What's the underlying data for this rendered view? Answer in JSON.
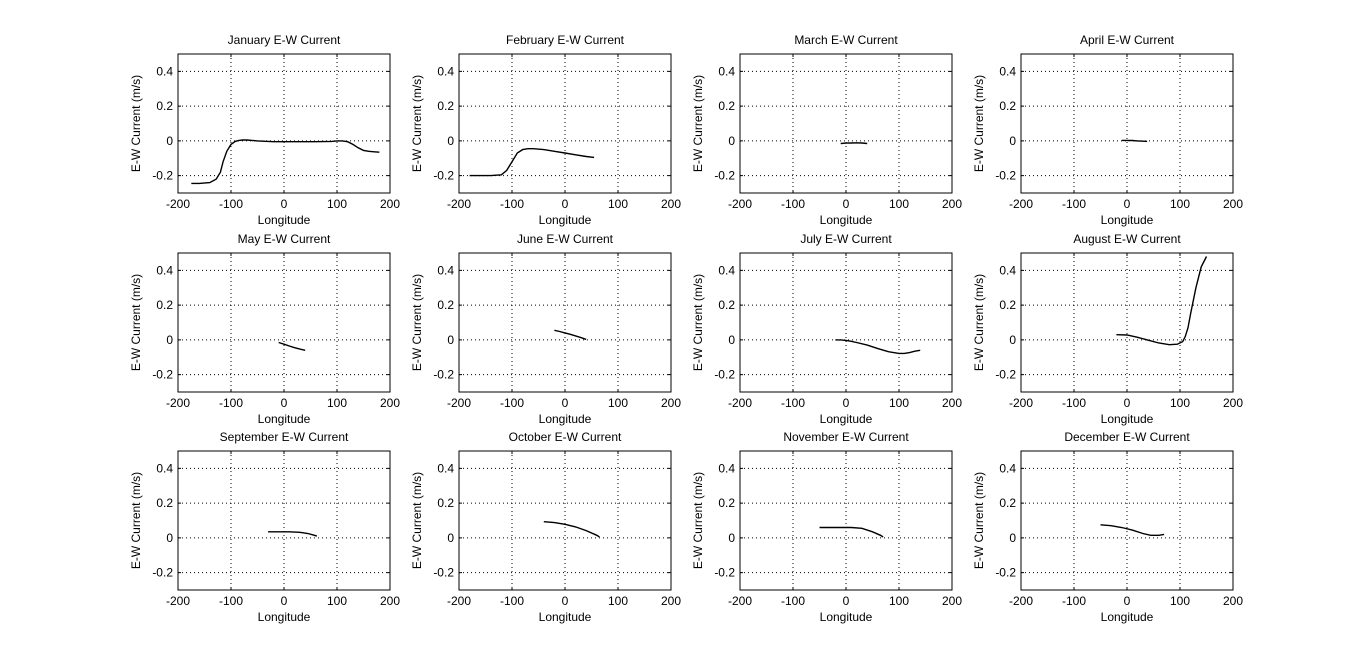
{
  "chart_data": [
    {
      "type": "line",
      "title": "January E-W Current",
      "xlabel": "Longitude",
      "ylabel": "E-W Current (m/s)",
      "xlim": [
        -200,
        200
      ],
      "ylim": [
        -0.3,
        0.5
      ],
      "xticks": [
        "-200",
        "-100",
        "0",
        "100",
        "200"
      ],
      "yticks": [
        "-0.2",
        "0",
        "0.2",
        "0.4"
      ],
      "grid": true,
      "series": [
        {
          "x": [
            -175,
            -160,
            -140,
            -128,
            -120,
            -115,
            -108,
            -100,
            -92,
            -85,
            -78,
            -70,
            -50,
            -20,
            0,
            30,
            60,
            90,
            100,
            110,
            120,
            130,
            140,
            150,
            160,
            170,
            180
          ],
          "y": [
            -0.245,
            -0.245,
            -0.24,
            -0.22,
            -0.18,
            -0.12,
            -0.06,
            -0.02,
            -0.003,
            0.003,
            0.005,
            0.005,
            0,
            -0.005,
            -0.005,
            -0.005,
            -0.005,
            -0.003,
            0,
            0,
            -0.005,
            -0.02,
            -0.04,
            -0.055,
            -0.06,
            -0.063,
            -0.065
          ]
        }
      ]
    },
    {
      "type": "line",
      "title": "February E-W Current",
      "xlabel": "Longitude",
      "ylabel": "E-W Current (m/s)",
      "xlim": [
        -200,
        200
      ],
      "ylim": [
        -0.3,
        0.5
      ],
      "xticks": [
        "-200",
        "-100",
        "0",
        "100",
        "200"
      ],
      "yticks": [
        "-0.2",
        "0",
        "0.2",
        "0.4"
      ],
      "grid": true,
      "series": [
        {
          "x": [
            -180,
            -160,
            -140,
            -120,
            -110,
            -100,
            -90,
            -80,
            -70,
            -60,
            -40,
            -20,
            0,
            20,
            40,
            55
          ],
          "y": [
            -0.2,
            -0.2,
            -0.2,
            -0.195,
            -0.17,
            -0.12,
            -0.07,
            -0.05,
            -0.045,
            -0.045,
            -0.05,
            -0.06,
            -0.07,
            -0.08,
            -0.09,
            -0.095
          ]
        }
      ]
    },
    {
      "type": "line",
      "title": "March E-W Current",
      "xlabel": "Longitude",
      "ylabel": "E-W Current (m/s)",
      "xlim": [
        -200,
        200
      ],
      "ylim": [
        -0.3,
        0.5
      ],
      "xticks": [
        "-200",
        "-100",
        "0",
        "100",
        "200"
      ],
      "yticks": [
        "-0.2",
        "0",
        "0.2",
        "0.4"
      ],
      "grid": true,
      "series": [
        {
          "x": [
            -10,
            0,
            10,
            20,
            30,
            40
          ],
          "y": [
            -0.015,
            -0.013,
            -0.012,
            -0.011,
            -0.012,
            -0.015
          ]
        }
      ]
    },
    {
      "type": "line",
      "title": "April E-W Current",
      "xlabel": "Longitude",
      "ylabel": "E-W Current (m/s)",
      "xlim": [
        -200,
        200
      ],
      "ylim": [
        -0.3,
        0.5
      ],
      "xticks": [
        "-200",
        "-100",
        "0",
        "100",
        "200"
      ],
      "yticks": [
        "-0.2",
        "0",
        "0.2",
        "0.4"
      ],
      "grid": true,
      "series": [
        {
          "x": [
            -10,
            0,
            10,
            20,
            30,
            38
          ],
          "y": [
            0.003,
            0.003,
            0.002,
            0,
            -0.002,
            -0.003
          ]
        }
      ]
    },
    {
      "type": "line",
      "title": "May E-W Current",
      "xlabel": "Longitude",
      "ylabel": "E-W Current (m/s)",
      "xlim": [
        -200,
        200
      ],
      "ylim": [
        -0.3,
        0.5
      ],
      "xticks": [
        "-200",
        "-100",
        "0",
        "100",
        "200"
      ],
      "yticks": [
        "-0.2",
        "0",
        "0.2",
        "0.4"
      ],
      "grid": true,
      "series": [
        {
          "x": [
            -10,
            0,
            10,
            20,
            30,
            40
          ],
          "y": [
            -0.015,
            -0.025,
            -0.035,
            -0.045,
            -0.053,
            -0.06
          ]
        }
      ]
    },
    {
      "type": "line",
      "title": "June E-W Current",
      "xlabel": "Longitude",
      "ylabel": "E-W Current (m/s)",
      "xlim": [
        -200,
        200
      ],
      "ylim": [
        -0.3,
        0.5
      ],
      "xticks": [
        "-200",
        "-100",
        "0",
        "100",
        "200"
      ],
      "yticks": [
        "-0.2",
        "0",
        "0.2",
        "0.4"
      ],
      "grid": true,
      "series": [
        {
          "x": [
            -20,
            -10,
            0,
            10,
            20,
            30,
            40
          ],
          "y": [
            0.055,
            0.048,
            0.04,
            0.032,
            0.023,
            0.013,
            0.003
          ]
        }
      ]
    },
    {
      "type": "line",
      "title": "July E-W Current",
      "xlabel": "Longitude",
      "ylabel": "E-W Current (m/s)",
      "xlim": [
        -200,
        200
      ],
      "ylim": [
        -0.3,
        0.5
      ],
      "xticks": [
        "-200",
        "-100",
        "0",
        "100",
        "200"
      ],
      "yticks": [
        "-0.2",
        "0",
        "0.2",
        "0.4"
      ],
      "grid": true,
      "series": [
        {
          "x": [
            -20,
            -10,
            0,
            10,
            20,
            40,
            60,
            80,
            100,
            110,
            120,
            130,
            140
          ],
          "y": [
            0,
            0,
            -0.003,
            -0.008,
            -0.015,
            -0.03,
            -0.05,
            -0.068,
            -0.078,
            -0.078,
            -0.073,
            -0.065,
            -0.06
          ]
        }
      ]
    },
    {
      "type": "line",
      "title": "August E-W Current",
      "xlabel": "Longitude",
      "ylabel": "E-W Current (m/s)",
      "xlim": [
        -200,
        200
      ],
      "ylim": [
        -0.3,
        0.5
      ],
      "xticks": [
        "-200",
        "-100",
        "0",
        "100",
        "200"
      ],
      "yticks": [
        "-0.2",
        "0",
        "0.2",
        "0.4"
      ],
      "grid": true,
      "series": [
        {
          "x": [
            -20,
            0,
            20,
            40,
            60,
            80,
            95,
            105,
            110,
            115,
            120,
            130,
            140,
            150
          ],
          "y": [
            0.03,
            0.028,
            0.015,
            -0.002,
            -0.018,
            -0.028,
            -0.025,
            -0.01,
            0.02,
            0.07,
            0.15,
            0.3,
            0.42,
            0.48
          ]
        }
      ]
    },
    {
      "type": "line",
      "title": "September E-W Current",
      "xlabel": "Longitude",
      "ylabel": "E-W Current (m/s)",
      "xlim": [
        -200,
        200
      ],
      "ylim": [
        -0.3,
        0.5
      ],
      "xticks": [
        "-200",
        "-100",
        "0",
        "100",
        "200"
      ],
      "yticks": [
        "-0.2",
        "0",
        "0.2",
        "0.4"
      ],
      "grid": true,
      "series": [
        {
          "x": [
            -30,
            -10,
            10,
            30,
            45,
            55,
            62
          ],
          "y": [
            0.035,
            0.035,
            0.035,
            0.032,
            0.025,
            0.017,
            0.01
          ]
        }
      ]
    },
    {
      "type": "line",
      "title": "October E-W Current",
      "xlabel": "Longitude",
      "ylabel": "E-W Current (m/s)",
      "xlim": [
        -200,
        200
      ],
      "ylim": [
        -0.3,
        0.5
      ],
      "xticks": [
        "-200",
        "-100",
        "0",
        "100",
        "200"
      ],
      "yticks": [
        "-0.2",
        "0",
        "0.2",
        "0.4"
      ],
      "grid": true,
      "series": [
        {
          "x": [
            -40,
            -20,
            0,
            20,
            40,
            60,
            65
          ],
          "y": [
            0.093,
            0.088,
            0.078,
            0.063,
            0.042,
            0.015,
            0.005
          ]
        }
      ]
    },
    {
      "type": "line",
      "title": "November E-W Current",
      "xlabel": "Longitude",
      "ylabel": "E-W Current (m/s)",
      "xlim": [
        -200,
        200
      ],
      "ylim": [
        -0.3,
        0.5
      ],
      "xticks": [
        "-200",
        "-100",
        "0",
        "100",
        "200"
      ],
      "yticks": [
        "-0.2",
        "0",
        "0.2",
        "0.4"
      ],
      "grid": true,
      "series": [
        {
          "x": [
            -50,
            -30,
            -10,
            10,
            30,
            50,
            65,
            70
          ],
          "y": [
            0.06,
            0.06,
            0.06,
            0.06,
            0.055,
            0.035,
            0.015,
            0.005
          ]
        }
      ]
    },
    {
      "type": "line",
      "title": "December E-W Current",
      "xlabel": "Longitude",
      "ylabel": "E-W Current (m/s)",
      "xlim": [
        -200,
        200
      ],
      "ylim": [
        -0.3,
        0.5
      ],
      "xticks": [
        "-200",
        "-100",
        "0",
        "100",
        "200"
      ],
      "yticks": [
        "-0.2",
        "0",
        "0.2",
        "0.4"
      ],
      "grid": true,
      "series": [
        {
          "x": [
            -50,
            -30,
            -10,
            10,
            30,
            45,
            60,
            70
          ],
          "y": [
            0.075,
            0.07,
            0.06,
            0.045,
            0.025,
            0.015,
            0.015,
            0.02
          ]
        }
      ]
    }
  ]
}
